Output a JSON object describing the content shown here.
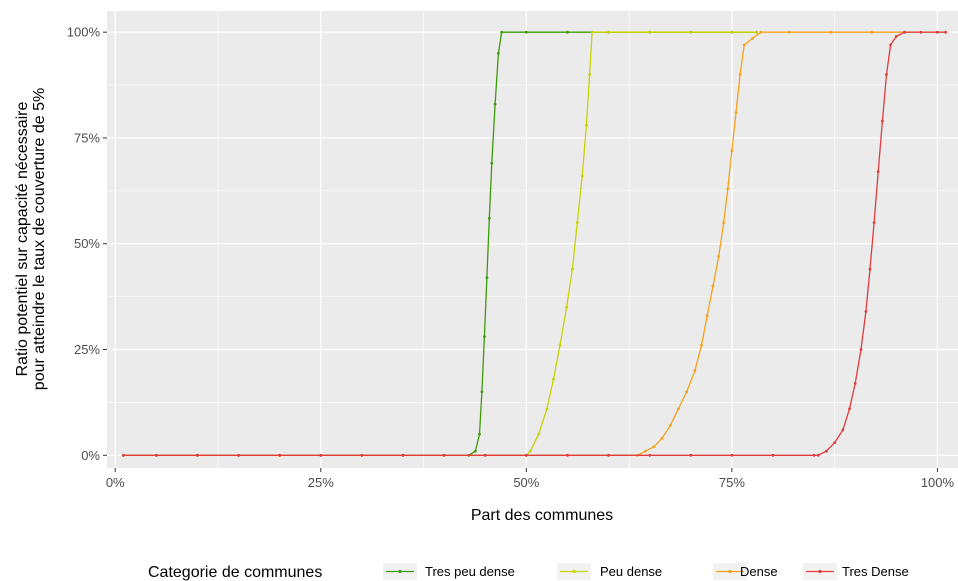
{
  "chart_data": {
    "type": "line",
    "title": "",
    "xlabel": "Part des communes",
    "ylabel_lines": [
      "Ratio potentiel sur capacité nécessaire",
      "pour atteindre le taux de couverture de 5%"
    ],
    "xlim": [
      -0.01,
      1.025
    ],
    "ylim": [
      -0.03,
      1.05
    ],
    "x_ticks": [
      0,
      0.25,
      0.5,
      0.75,
      1
    ],
    "x_tick_labels": [
      "0%",
      "25%",
      "50%",
      "75%",
      "100%"
    ],
    "y_ticks": [
      0,
      0.25,
      0.5,
      0.75,
      1
    ],
    "y_tick_labels": [
      "0%",
      "25%",
      "50%",
      "75%",
      "100%"
    ],
    "grid": true,
    "legend_position": "bottom",
    "legend_title": "Categorie de communes",
    "series": [
      {
        "name": "Tres peu dense",
        "color": "#3f9b0b",
        "points": [
          [
            0.01,
            0
          ],
          [
            0.05,
            0
          ],
          [
            0.1,
            0
          ],
          [
            0.15,
            0
          ],
          [
            0.2,
            0
          ],
          [
            0.25,
            0
          ],
          [
            0.3,
            0
          ],
          [
            0.35,
            0
          ],
          [
            0.4,
            0
          ],
          [
            0.43,
            0
          ],
          [
            0.438,
            0.01
          ],
          [
            0.443,
            0.05
          ],
          [
            0.446,
            0.15
          ],
          [
            0.449,
            0.28
          ],
          [
            0.452,
            0.42
          ],
          [
            0.455,
            0.56
          ],
          [
            0.458,
            0.69
          ],
          [
            0.462,
            0.83
          ],
          [
            0.466,
            0.95
          ],
          [
            0.47,
            1.0
          ],
          [
            0.5,
            1
          ],
          [
            0.55,
            1
          ],
          [
            0.6,
            1
          ],
          [
            0.65,
            1
          ],
          [
            0.7,
            1
          ],
          [
            0.75,
            1
          ],
          [
            0.78,
            1
          ]
        ]
      },
      {
        "name": "Peu dense",
        "color": "#c8d400",
        "points": [
          [
            0.01,
            0
          ],
          [
            0.1,
            0
          ],
          [
            0.2,
            0
          ],
          [
            0.3,
            0
          ],
          [
            0.4,
            0
          ],
          [
            0.45,
            0
          ],
          [
            0.5,
            0
          ],
          [
            0.505,
            0.01
          ],
          [
            0.515,
            0.05
          ],
          [
            0.525,
            0.11
          ],
          [
            0.533,
            0.18
          ],
          [
            0.541,
            0.26
          ],
          [
            0.549,
            0.35
          ],
          [
            0.556,
            0.44
          ],
          [
            0.562,
            0.55
          ],
          [
            0.568,
            0.66
          ],
          [
            0.573,
            0.78
          ],
          [
            0.577,
            0.9
          ],
          [
            0.58,
            1.0
          ],
          [
            0.6,
            1
          ],
          [
            0.65,
            1
          ],
          [
            0.7,
            1
          ],
          [
            0.75,
            1
          ],
          [
            0.78,
            1
          ]
        ]
      },
      {
        "name": "Dense",
        "color": "#f5a11c",
        "points": [
          [
            0.01,
            0
          ],
          [
            0.1,
            0
          ],
          [
            0.2,
            0
          ],
          [
            0.3,
            0
          ],
          [
            0.4,
            0
          ],
          [
            0.5,
            0
          ],
          [
            0.6,
            0
          ],
          [
            0.635,
            0
          ],
          [
            0.645,
            0.01
          ],
          [
            0.655,
            0.02
          ],
          [
            0.665,
            0.04
          ],
          [
            0.675,
            0.07
          ],
          [
            0.685,
            0.11
          ],
          [
            0.695,
            0.15
          ],
          [
            0.705,
            0.2
          ],
          [
            0.713,
            0.26
          ],
          [
            0.72,
            0.33
          ],
          [
            0.727,
            0.4
          ],
          [
            0.734,
            0.47
          ],
          [
            0.74,
            0.55
          ],
          [
            0.745,
            0.63
          ],
          [
            0.75,
            0.72
          ],
          [
            0.755,
            0.81
          ],
          [
            0.76,
            0.9
          ],
          [
            0.765,
            0.97
          ],
          [
            0.775,
            0.985
          ],
          [
            0.785,
            1.0
          ],
          [
            0.82,
            1
          ],
          [
            0.87,
            1
          ],
          [
            0.92,
            1
          ],
          [
            0.96,
            1
          ]
        ]
      },
      {
        "name": "Tres Dense",
        "color": "#e03c3c",
        "points": [
          [
            0.01,
            0
          ],
          [
            0.05,
            0
          ],
          [
            0.1,
            0
          ],
          [
            0.15,
            0
          ],
          [
            0.2,
            0
          ],
          [
            0.25,
            0
          ],
          [
            0.3,
            0
          ],
          [
            0.35,
            0
          ],
          [
            0.4,
            0
          ],
          [
            0.45,
            0
          ],
          [
            0.5,
            0
          ],
          [
            0.55,
            0
          ],
          [
            0.6,
            0
          ],
          [
            0.65,
            0
          ],
          [
            0.7,
            0
          ],
          [
            0.75,
            0
          ],
          [
            0.8,
            0
          ],
          [
            0.85,
            0
          ],
          [
            0.855,
            0
          ],
          [
            0.865,
            0.01
          ],
          [
            0.875,
            0.03
          ],
          [
            0.885,
            0.06
          ],
          [
            0.893,
            0.11
          ],
          [
            0.9,
            0.17
          ],
          [
            0.907,
            0.25
          ],
          [
            0.913,
            0.34
          ],
          [
            0.918,
            0.44
          ],
          [
            0.923,
            0.55
          ],
          [
            0.928,
            0.67
          ],
          [
            0.933,
            0.79
          ],
          [
            0.938,
            0.9
          ],
          [
            0.943,
            0.97
          ],
          [
            0.95,
            0.99
          ],
          [
            0.96,
            1.0
          ],
          [
            0.98,
            1
          ],
          [
            1.0,
            1
          ],
          [
            1.01,
            1
          ]
        ]
      }
    ]
  }
}
